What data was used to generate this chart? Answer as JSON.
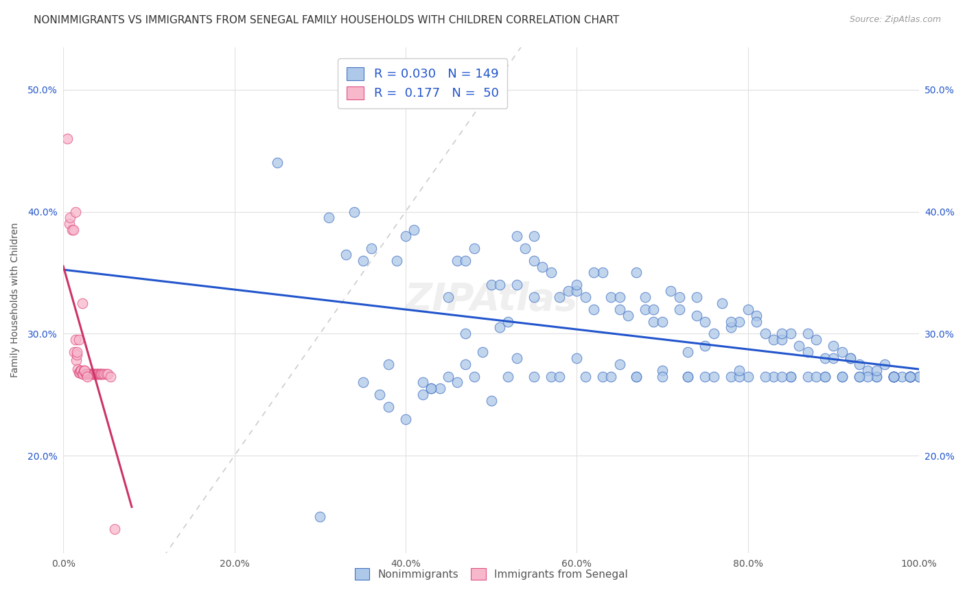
{
  "title": "NONIMMIGRANTS VS IMMIGRANTS FROM SENEGAL FAMILY HOUSEHOLDS WITH CHILDREN CORRELATION CHART",
  "source": "Source: ZipAtlas.com",
  "ylabel": "Family Households with Children",
  "legend_nonimm": "Nonimmigrants",
  "legend_imm": "Immigrants from Senegal",
  "nonimm_R": "0.030",
  "nonimm_N": "149",
  "imm_R": "0.177",
  "imm_N": "50",
  "nonimm_color": "#adc8e8",
  "nonimm_edge_color": "#4472c4",
  "imm_color": "#f7b8cc",
  "imm_edge_color": "#e05080",
  "nonimm_line_color": "#2255cc",
  "imm_line_color": "#cc3366",
  "diagonal_color": "#cccccc",
  "background_color": "#ffffff",
  "grid_color": "#e0e0e0",
  "blue_text_color": "#2255cc",
  "xlim": [
    0.0,
    1.0
  ],
  "ylim": [
    0.12,
    0.535
  ],
  "yticks": [
    0.2,
    0.3,
    0.4,
    0.5
  ],
  "ytick_labels": [
    "20.0%",
    "30.0%",
    "40.0%",
    "50.0%"
  ],
  "xticks": [
    0.0,
    0.2,
    0.4,
    0.6,
    0.8,
    1.0
  ],
  "xtick_labels": [
    "0.0%",
    "20.0%",
    "40.0%",
    "60.0%",
    "80.0%",
    "100.0%"
  ],
  "nonimm_x": [
    0.25,
    0.31,
    0.33,
    0.35,
    0.37,
    0.38,
    0.39,
    0.4,
    0.41,
    0.42,
    0.43,
    0.44,
    0.45,
    0.46,
    0.46,
    0.47,
    0.47,
    0.48,
    0.49,
    0.5,
    0.51,
    0.51,
    0.52,
    0.53,
    0.53,
    0.54,
    0.55,
    0.55,
    0.56,
    0.57,
    0.58,
    0.59,
    0.6,
    0.61,
    0.62,
    0.63,
    0.64,
    0.65,
    0.66,
    0.67,
    0.68,
    0.69,
    0.7,
    0.71,
    0.72,
    0.73,
    0.74,
    0.75,
    0.76,
    0.77,
    0.78,
    0.79,
    0.8,
    0.81,
    0.82,
    0.83,
    0.84,
    0.85,
    0.86,
    0.87,
    0.88,
    0.89,
    0.9,
    0.91,
    0.92,
    0.93,
    0.94,
    0.95,
    0.96,
    0.97,
    0.98,
    0.99,
    0.99,
    1.0,
    0.34,
    0.36,
    0.4,
    0.43,
    0.47,
    0.5,
    0.53,
    0.57,
    0.6,
    0.63,
    0.65,
    0.67,
    0.7,
    0.73,
    0.75,
    0.78,
    0.8,
    0.83,
    0.85,
    0.87,
    0.89,
    0.91,
    0.93,
    0.95,
    0.97,
    0.3,
    0.35,
    0.38,
    0.42,
    0.45,
    0.48,
    0.52,
    0.55,
    0.58,
    0.61,
    0.64,
    0.67,
    0.7,
    0.73,
    0.76,
    0.79,
    0.82,
    0.85,
    0.88,
    0.91,
    0.94,
    0.97,
    0.6,
    0.65,
    0.68,
    0.72,
    0.75,
    0.78,
    0.81,
    0.84,
    0.87,
    0.9,
    0.92,
    0.95,
    0.97,
    0.55,
    0.62,
    0.69,
    0.74,
    0.79,
    0.84,
    0.89,
    0.93,
    0.97,
    0.99,
    0.99,
    1.0,
    0.97,
    0.99,
    0.99
  ],
  "nonimm_y": [
    0.44,
    0.395,
    0.365,
    0.36,
    0.25,
    0.24,
    0.36,
    0.38,
    0.385,
    0.25,
    0.255,
    0.255,
    0.33,
    0.36,
    0.26,
    0.36,
    0.3,
    0.37,
    0.285,
    0.34,
    0.34,
    0.305,
    0.31,
    0.38,
    0.34,
    0.37,
    0.38,
    0.33,
    0.355,
    0.35,
    0.33,
    0.335,
    0.335,
    0.33,
    0.32,
    0.35,
    0.33,
    0.32,
    0.315,
    0.35,
    0.33,
    0.31,
    0.31,
    0.335,
    0.33,
    0.285,
    0.33,
    0.29,
    0.3,
    0.325,
    0.305,
    0.31,
    0.32,
    0.315,
    0.3,
    0.295,
    0.295,
    0.3,
    0.29,
    0.285,
    0.295,
    0.28,
    0.28,
    0.285,
    0.28,
    0.275,
    0.27,
    0.265,
    0.275,
    0.265,
    0.265,
    0.265,
    0.265,
    0.265,
    0.4,
    0.37,
    0.23,
    0.255,
    0.275,
    0.245,
    0.28,
    0.265,
    0.28,
    0.265,
    0.275,
    0.265,
    0.27,
    0.265,
    0.265,
    0.265,
    0.265,
    0.265,
    0.265,
    0.265,
    0.265,
    0.265,
    0.265,
    0.265,
    0.265,
    0.15,
    0.26,
    0.275,
    0.26,
    0.265,
    0.265,
    0.265,
    0.265,
    0.265,
    0.265,
    0.265,
    0.265,
    0.265,
    0.265,
    0.265,
    0.265,
    0.265,
    0.265,
    0.265,
    0.265,
    0.265,
    0.265,
    0.34,
    0.33,
    0.32,
    0.32,
    0.31,
    0.31,
    0.31,
    0.3,
    0.3,
    0.29,
    0.28,
    0.27,
    0.265,
    0.36,
    0.35,
    0.32,
    0.315,
    0.27,
    0.265,
    0.265,
    0.265,
    0.265,
    0.265,
    0.265,
    0.265,
    0.265,
    0.265,
    0.265
  ],
  "imm_x": [
    0.005,
    0.007,
    0.008,
    0.01,
    0.012,
    0.013,
    0.014,
    0.015,
    0.016,
    0.017,
    0.018,
    0.019,
    0.02,
    0.021,
    0.022,
    0.023,
    0.024,
    0.025,
    0.026,
    0.027,
    0.028,
    0.029,
    0.03,
    0.031,
    0.032,
    0.033,
    0.034,
    0.035,
    0.036,
    0.037,
    0.038,
    0.039,
    0.04,
    0.041,
    0.042,
    0.043,
    0.044,
    0.045,
    0.046,
    0.048,
    0.05,
    0.052,
    0.014,
    0.016,
    0.018,
    0.022,
    0.025,
    0.028,
    0.055,
    0.06
  ],
  "imm_y": [
    0.46,
    0.39,
    0.395,
    0.385,
    0.385,
    0.285,
    0.295,
    0.278,
    0.283,
    0.271,
    0.268,
    0.268,
    0.27,
    0.27,
    0.267,
    0.267,
    0.27,
    0.27,
    0.267,
    0.267,
    0.267,
    0.267,
    0.267,
    0.267,
    0.267,
    0.267,
    0.267,
    0.267,
    0.267,
    0.267,
    0.267,
    0.267,
    0.267,
    0.267,
    0.267,
    0.267,
    0.267,
    0.267,
    0.267,
    0.267,
    0.267,
    0.267,
    0.4,
    0.285,
    0.295,
    0.325,
    0.27,
    0.265,
    0.265,
    0.14
  ],
  "watermark": "ZIPAtlas",
  "title_fontsize": 11,
  "axis_label_fontsize": 10,
  "tick_fontsize": 10
}
